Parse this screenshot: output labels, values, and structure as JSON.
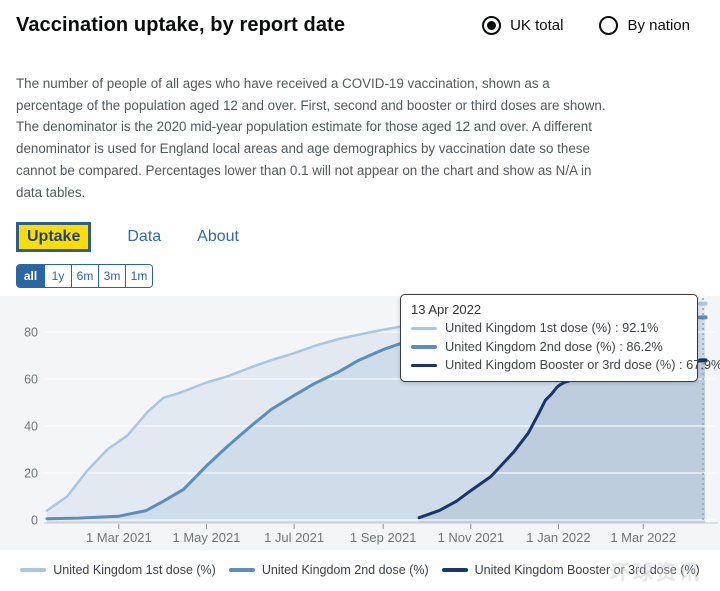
{
  "header": {
    "title": "Vaccination uptake, by report date",
    "radios": [
      {
        "label": "UK total",
        "selected": true
      },
      {
        "label": "By nation",
        "selected": false
      }
    ]
  },
  "description": "The number of people of all ages who have received a COVID-19 vaccination, shown as a percentage of the population aged 12 and over. First, second and booster or third doses are shown. The denominator is the 2020 mid-year population estimate for those aged 12 and over. A different denominator is used for England local areas and age demographics by vaccination date so these cannot be compared. Percentages lower than 0.1 will not appear on the chart and show as N/A in data tables.",
  "tabs": [
    {
      "label": "Uptake",
      "active": true
    },
    {
      "label": "Data",
      "active": false
    },
    {
      "label": "About",
      "active": false
    }
  ],
  "range_buttons": [
    {
      "label": "all",
      "selected": true
    },
    {
      "label": "1y",
      "selected": false
    },
    {
      "label": "6m",
      "selected": false
    },
    {
      "label": "3m",
      "selected": false
    },
    {
      "label": "1m",
      "selected": false
    }
  ],
  "tooltip": {
    "date": "13 Apr 2022",
    "sep": " : ",
    "rows": [
      {
        "label": "United Kingdom 1st dose (%)",
        "value": "92.1%"
      },
      {
        "label": "United Kingdom 2nd dose (%)",
        "value": "86.2%"
      },
      {
        "label": "United Kingdom Booster or 3rd dose (%)",
        "value": "67.9%"
      }
    ]
  },
  "watermark": "环球资讯",
  "chart_data": {
    "type": "area",
    "title": "",
    "xlabel": "",
    "ylabel": "",
    "y_ticks": [
      0,
      20,
      40,
      60,
      80
    ],
    "ylim": [
      0,
      95
    ],
    "x_range": [
      "2021-01-10",
      "2022-04-13"
    ],
    "grid": "horizontal",
    "legend_position": "bottom",
    "x_ticks": [
      {
        "date": "2021-03-01",
        "label": "1 Mar 2021"
      },
      {
        "date": "2021-05-01",
        "label": "1 May 2021"
      },
      {
        "date": "2021-07-01",
        "label": "1 Jul 2021"
      },
      {
        "date": "2021-09-01",
        "label": "1 Sep 2021"
      },
      {
        "date": "2021-11-01",
        "label": "1 Nov 2021"
      },
      {
        "date": "2022-01-01",
        "label": "1 Jan 2022"
      },
      {
        "date": "2022-03-01",
        "label": "1 Mar 2022"
      }
    ],
    "series": [
      {
        "name": "United Kingdom 1st dose (%)",
        "color": "#aac6e0",
        "fill": "rgba(170,198,226,0.25)",
        "width": 2.5,
        "end_value": 92.1,
        "points": [
          [
            "2021-01-10",
            4
          ],
          [
            "2021-01-24",
            10
          ],
          [
            "2021-02-07",
            21
          ],
          [
            "2021-02-21",
            30
          ],
          [
            "2021-03-07",
            36
          ],
          [
            "2021-03-21",
            46
          ],
          [
            "2021-04-01",
            52
          ],
          [
            "2021-04-12",
            54
          ],
          [
            "2021-05-01",
            58.5
          ],
          [
            "2021-05-15",
            61
          ],
          [
            "2021-06-01",
            65
          ],
          [
            "2021-06-15",
            68
          ],
          [
            "2021-07-01",
            71
          ],
          [
            "2021-07-15",
            74
          ],
          [
            "2021-08-01",
            77
          ],
          [
            "2021-08-20",
            79.5
          ],
          [
            "2021-09-01",
            81
          ],
          [
            "2021-09-20",
            83
          ],
          [
            "2021-10-05",
            84.5
          ],
          [
            "2021-11-01",
            86.5
          ],
          [
            "2021-12-01",
            88
          ],
          [
            "2022-01-01",
            90.3
          ],
          [
            "2022-02-01",
            91.2
          ],
          [
            "2022-03-01",
            91.7
          ],
          [
            "2022-04-13",
            92.1
          ]
        ]
      },
      {
        "name": "United Kingdom 2nd dose (%)",
        "color": "#5b8dbe",
        "fill": "rgba(91,141,190,0.14)",
        "width": 3,
        "end_value": 86.2,
        "points": [
          [
            "2021-01-10",
            0.5
          ],
          [
            "2021-02-01",
            0.8
          ],
          [
            "2021-03-01",
            1.6
          ],
          [
            "2021-03-20",
            4
          ],
          [
            "2021-04-01",
            8
          ],
          [
            "2021-04-15",
            13
          ],
          [
            "2021-05-01",
            23
          ],
          [
            "2021-05-15",
            31
          ],
          [
            "2021-06-01",
            40
          ],
          [
            "2021-06-15",
            47
          ],
          [
            "2021-07-01",
            53
          ],
          [
            "2021-07-15",
            58
          ],
          [
            "2021-08-01",
            63
          ],
          [
            "2021-08-15",
            68
          ],
          [
            "2021-09-01",
            72.5
          ],
          [
            "2021-09-15",
            75.5
          ],
          [
            "2021-10-01",
            77.5
          ],
          [
            "2021-11-01",
            79.5
          ],
          [
            "2021-12-01",
            81
          ],
          [
            "2022-01-01",
            83.5
          ],
          [
            "2022-02-01",
            85
          ],
          [
            "2022-03-01",
            85.8
          ],
          [
            "2022-04-13",
            86.2
          ]
        ]
      },
      {
        "name": "United Kingdom Booster or 3rd dose (%)",
        "color": "#17376c",
        "fill": "rgba(23,55,108,0.09)",
        "width": 3,
        "end_value": 67.9,
        "points": [
          [
            "2021-09-26",
            1
          ],
          [
            "2021-10-10",
            4
          ],
          [
            "2021-10-22",
            8
          ],
          [
            "2021-11-01",
            12.5
          ],
          [
            "2021-11-15",
            18.5
          ],
          [
            "2021-12-01",
            29
          ],
          [
            "2021-12-11",
            37
          ],
          [
            "2021-12-18",
            45
          ],
          [
            "2021-12-23",
            51
          ],
          [
            "2021-12-27",
            53.5
          ],
          [
            "2021-12-31",
            56.5
          ],
          [
            "2022-01-02",
            57.5
          ],
          [
            "2022-01-05",
            58.5
          ],
          [
            "2022-01-15",
            60.5
          ],
          [
            "2022-02-01",
            63
          ],
          [
            "2022-02-15",
            65
          ],
          [
            "2022-03-01",
            66
          ],
          [
            "2022-04-13",
            67.9
          ]
        ]
      }
    ]
  }
}
